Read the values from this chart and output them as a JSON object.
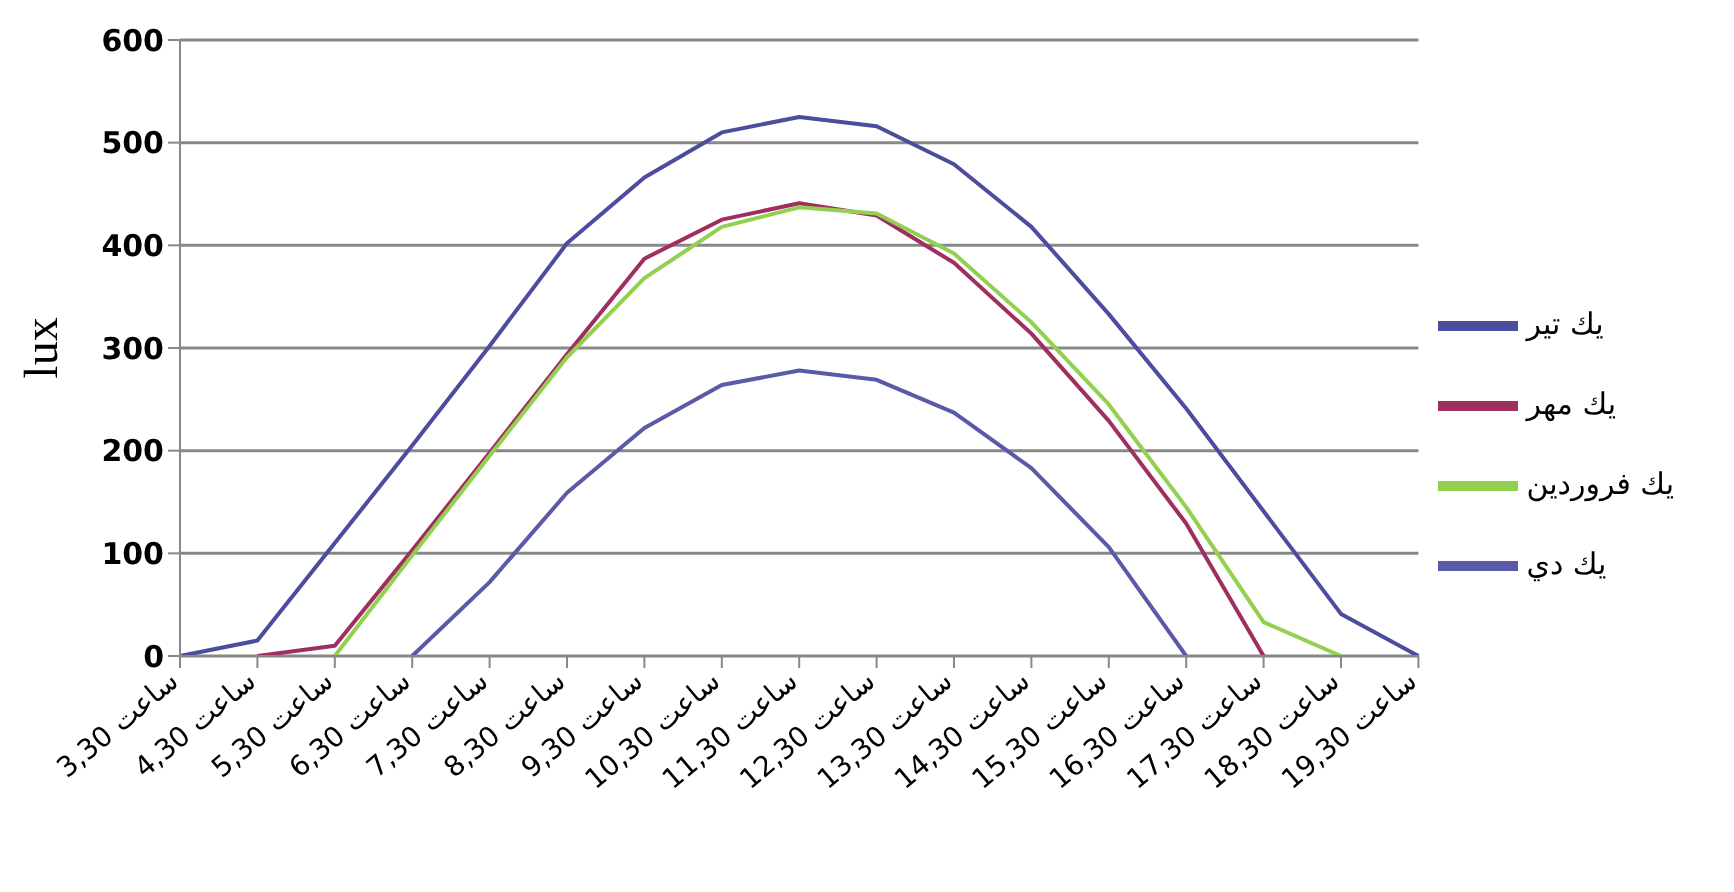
{
  "chart_data": {
    "type": "line",
    "ylabel": "lux",
    "categories": [
      "ساعت 3,30",
      "ساعت 4,30",
      "ساعت 5,30",
      "ساعت 6,30",
      "ساعت 7,30",
      "ساعت 8,30",
      "ساعت 9,30",
      "ساعت 10,30",
      "ساعت 11,30",
      "ساعت 12,30",
      "ساعت 13,30",
      "ساعت 14,30",
      "ساعت 15,30",
      "ساعت 16,30",
      "ساعت 17,30",
      "ساعت 18,30",
      "ساعت 19,30"
    ],
    "series": [
      {
        "name": "يك تير",
        "color": "#4d4d9f",
        "values": [
          0,
          15,
          110,
          205,
          302,
          402,
          466,
          510,
          525,
          516,
          479,
          418,
          333,
          241,
          141,
          41,
          0
        ]
      },
      {
        "name": "يك مهر",
        "color": "#9e2f5e",
        "values": [
          null,
          0,
          10,
          103,
          198,
          294,
          387,
          425,
          441,
          429,
          383,
          314,
          229,
          129,
          0,
          null,
          null
        ]
      },
      {
        "name": "يك فروردين",
        "color": "#92d050",
        "values": [
          null,
          null,
          0,
          98,
          195,
          291,
          368,
          418,
          437,
          431,
          392,
          325,
          245,
          145,
          33,
          0,
          null
        ]
      },
      {
        "name": "يك دي",
        "color": "#5a5aa8",
        "values": [
          null,
          null,
          null,
          0,
          72,
          159,
          222,
          264,
          278,
          269,
          237,
          183,
          106,
          0,
          null,
          null,
          null
        ]
      }
    ],
    "ylim": [
      0,
      600
    ],
    "yticks": [
      0,
      100,
      200,
      300,
      400,
      500,
      600
    ],
    "grid": "y",
    "legend": "right",
    "marker": "none",
    "line_style": "solid"
  }
}
